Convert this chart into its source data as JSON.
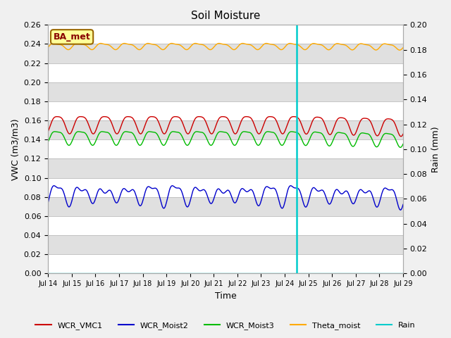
{
  "title": "Soil Moisture",
  "xlabel": "Time",
  "ylabel_left": "VWC (m3/m3)",
  "ylabel_right": "Rain (mm)",
  "ylim_left": [
    0.0,
    0.26
  ],
  "ylim_right": [
    0.0,
    0.2
  ],
  "yticks_left": [
    0.0,
    0.02,
    0.04,
    0.06,
    0.08,
    0.1,
    0.12,
    0.14,
    0.16,
    0.18,
    0.2,
    0.22,
    0.24,
    0.26
  ],
  "yticks_right": [
    0.0,
    0.02,
    0.04,
    0.06,
    0.08,
    0.1,
    0.12,
    0.14,
    0.16,
    0.18,
    0.2
  ],
  "xtick_labels": [
    "Jul 14",
    "Jul 15",
    "Jul 16",
    "Jul 17",
    "Jul 18",
    "Jul 19",
    "Jul 20",
    "Jul 21",
    "Jul 22",
    "Jul 23",
    "Jul 24",
    "Jul 25",
    "Jul 26",
    "Jul 27",
    "Jul 28",
    "Jul 29"
  ],
  "vertical_line_x": 10.5,
  "fig_bg_color": "#f0f0f0",
  "plot_bg_color": "#ffffff",
  "band_color": "#e0e0e0",
  "colors": {
    "WCR_VMC1": "#cc0000",
    "WCR_Moist2": "#0000cc",
    "WCR_Moist3": "#00bb00",
    "Theta_moist": "#ffaa00",
    "Rain": "#00cccc"
  },
  "label_box": "BA_met",
  "label_box_color": "#ffff99",
  "label_box_edge": "#996600",
  "label_box_text_color": "#880000"
}
